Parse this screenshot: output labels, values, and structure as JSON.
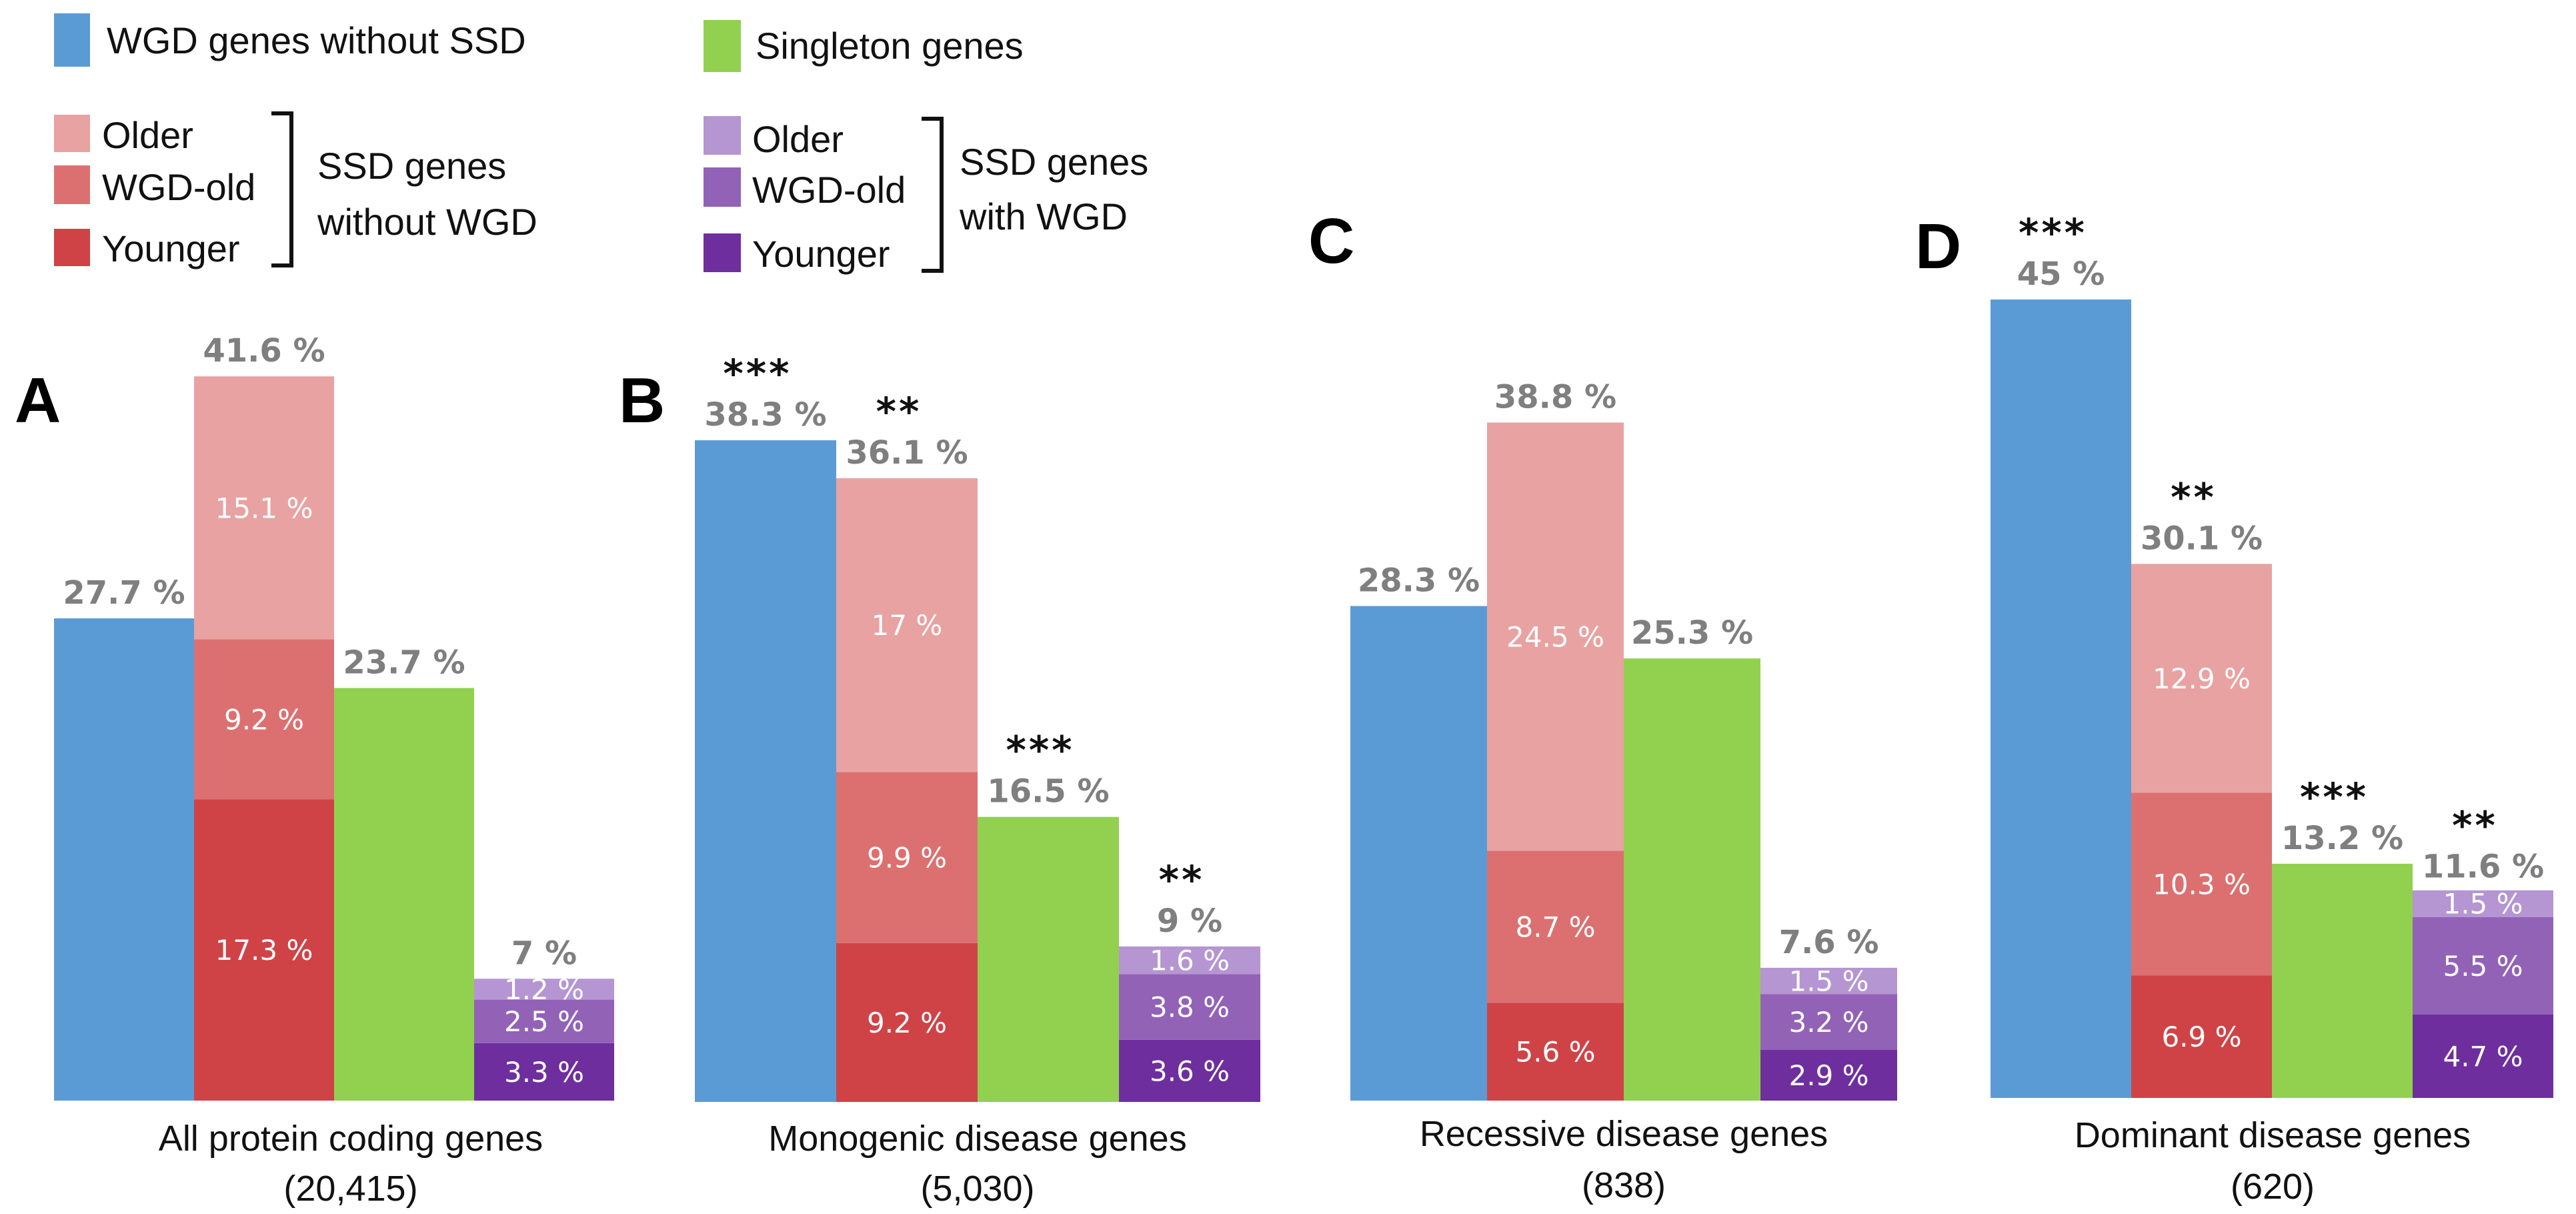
{
  "colors": {
    "wgd_no_ssd": "#5B9BD5",
    "ssd_no_wgd_older": "#E8A2A2",
    "ssd_no_wgd_wgd_old": "#DC7070",
    "ssd_no_wgd_younger": "#CF4347",
    "singleton": "#92D050",
    "ssd_wgd_older": "#B595D2",
    "ssd_wgd_wgd_old": "#9262B7",
    "ssd_wgd_younger": "#6E2E9E",
    "value_label": "#7F7F7F"
  },
  "legend": {
    "wgd_no_ssd": "WGD genes without SSD",
    "singleton": "Singleton genes",
    "ssd_no_wgd": {
      "items": [
        "Older",
        "WGD-old",
        "Younger"
      ],
      "group_line1": "SSD genes",
      "group_line2": "without WGD"
    },
    "ssd_wgd": {
      "items": [
        "Older",
        "WGD-old",
        "Younger"
      ],
      "group_line1": "SSD genes",
      "group_line2": "with WGD"
    }
  },
  "chart_data": [
    {
      "type": "bar",
      "panel": "A",
      "title": "All protein coding genes",
      "subtitle": "(20,415)",
      "ylabel": "",
      "unit": "%",
      "grid": false,
      "categories": [
        "WGD genes without SSD",
        "SSD genes without WGD",
        "Singleton genes",
        "SSD genes with WGD"
      ],
      "bars": [
        {
          "category": "WGD genes without SSD",
          "total": 27.7,
          "total_label": "27.7 %",
          "stars": "",
          "segments": []
        },
        {
          "category": "SSD genes without WGD",
          "total": 41.6,
          "total_label": "41.6 %",
          "stars": "",
          "segments": [
            {
              "name": "Younger",
              "value": 17.3,
              "label": "17.3 %"
            },
            {
              "name": "WGD-old",
              "value": 9.2,
              "label": "9.2 %"
            },
            {
              "name": "Older",
              "value": 15.1,
              "label": "15.1 %"
            }
          ]
        },
        {
          "category": "Singleton genes",
          "total": 23.7,
          "total_label": "23.7 %",
          "stars": "",
          "segments": []
        },
        {
          "category": "SSD genes with WGD",
          "total": 7.0,
          "total_label": "7 %",
          "stars": "",
          "segments": [
            {
              "name": "Younger",
              "value": 3.3,
              "label": "3.3 %"
            },
            {
              "name": "WGD-old",
              "value": 2.5,
              "label": "2.5 %"
            },
            {
              "name": "Older",
              "value": 1.2,
              "label": "1.2 %"
            }
          ]
        }
      ]
    },
    {
      "type": "bar",
      "panel": "B",
      "title": "Monogenic disease genes",
      "subtitle": "(5,030)",
      "ylabel": "",
      "unit": "%",
      "grid": false,
      "categories": [
        "WGD genes without SSD",
        "SSD genes without WGD",
        "Singleton genes",
        "SSD genes with WGD"
      ],
      "bars": [
        {
          "category": "WGD genes without SSD",
          "total": 38.3,
          "total_label": "38.3 %",
          "stars": "***",
          "segments": []
        },
        {
          "category": "SSD genes without WGD",
          "total": 36.1,
          "total_label": "36.1 %",
          "stars": "**",
          "segments": [
            {
              "name": "Younger",
              "value": 9.2,
              "label": "9.2 %"
            },
            {
              "name": "WGD-old",
              "value": 9.9,
              "label": "9.9 %"
            },
            {
              "name": "Older",
              "value": 17.0,
              "label": "17 %"
            }
          ]
        },
        {
          "category": "Singleton genes",
          "total": 16.5,
          "total_label": "16.5 %",
          "stars": "***",
          "segments": []
        },
        {
          "category": "SSD genes with WGD",
          "total": 9.0,
          "total_label": "9 %",
          "stars": "**",
          "segments": [
            {
              "name": "Younger",
              "value": 3.6,
              "label": "3.6 %"
            },
            {
              "name": "WGD-old",
              "value": 3.8,
              "label": "3.8  %"
            },
            {
              "name": "Older",
              "value": 1.6,
              "label": "1.6 %"
            }
          ]
        }
      ]
    },
    {
      "type": "bar",
      "panel": "C",
      "title": "Recessive disease genes",
      "subtitle": "(838)",
      "ylabel": "",
      "unit": "%",
      "grid": false,
      "categories": [
        "WGD genes without SSD",
        "SSD genes without WGD",
        "Singleton genes",
        "SSD genes with WGD"
      ],
      "bars": [
        {
          "category": "WGD genes without SSD",
          "total": 28.3,
          "total_label": "28.3 %",
          "stars": "",
          "segments": []
        },
        {
          "category": "SSD genes without WGD",
          "total": 38.8,
          "total_label": "38.8 %",
          "stars": "",
          "segments": [
            {
              "name": "Younger",
              "value": 5.6,
              "label": "5.6 %"
            },
            {
              "name": "WGD-old",
              "value": 8.7,
              "label": "8.7 %"
            },
            {
              "name": "Older",
              "value": 24.5,
              "label": "24.5 %"
            }
          ]
        },
        {
          "category": "Singleton genes",
          "total": 25.3,
          "total_label": "25.3 %",
          "stars": "",
          "segments": []
        },
        {
          "category": "SSD genes with WGD",
          "total": 7.6,
          "total_label": "7.6 %",
          "stars": "",
          "segments": [
            {
              "name": "Younger",
              "value": 2.9,
              "label": "2.9 %"
            },
            {
              "name": "WGD-old",
              "value": 3.2,
              "label": "3.2 %"
            },
            {
              "name": "Older",
              "value": 1.5,
              "label": "1.5 %"
            }
          ]
        }
      ]
    },
    {
      "type": "bar",
      "panel": "D",
      "title": "Dominant disease genes",
      "subtitle": "(620)",
      "ylabel": "",
      "unit": "%",
      "grid": false,
      "categories": [
        "WGD genes without SSD",
        "SSD genes without WGD",
        "Singleton genes",
        "SSD genes with WGD"
      ],
      "bars": [
        {
          "category": "WGD genes without SSD",
          "total": 45.0,
          "total_label": "45 %",
          "stars": "***",
          "segments": []
        },
        {
          "category": "SSD genes without WGD",
          "total": 30.1,
          "total_label": "30.1 %",
          "stars": "**",
          "segments": [
            {
              "name": "Younger",
              "value": 6.9,
              "label": "6.9 %"
            },
            {
              "name": "WGD-old",
              "value": 10.3,
              "label": "10.3 %"
            },
            {
              "name": "Older",
              "value": 12.9,
              "label": "12.9 %"
            }
          ]
        },
        {
          "category": "Singleton genes",
          "total": 13.2,
          "total_label": "13.2 %",
          "stars": "***",
          "segments": []
        },
        {
          "category": "SSD genes with WGD",
          "total": 11.6,
          "total_label": "11.6 %",
          "stars": "**",
          "segments": [
            {
              "name": "Younger",
              "value": 4.7,
              "label": "4.7 %"
            },
            {
              "name": "WGD-old",
              "value": 5.5,
              "label": "5.5 %"
            },
            {
              "name": "Older",
              "value": 1.5,
              "label": "1.5 %"
            }
          ]
        }
      ]
    }
  ]
}
